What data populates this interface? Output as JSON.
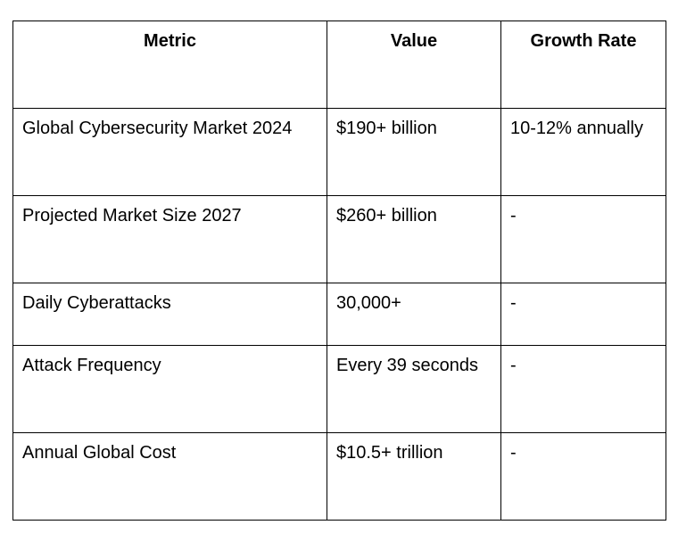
{
  "table": {
    "headers": [
      "Metric",
      "Value",
      "Growth Rate"
    ],
    "rows": [
      [
        "Global Cybersecurity Market 2024",
        "$190+ billion",
        "10-12% annually"
      ],
      [
        "Projected Market Size 2027",
        "$260+ billion",
        "-"
      ],
      [
        "Daily Cyberattacks",
        "30,000+",
        "-"
      ],
      [
        "Attack Frequency",
        "Every 39 seconds",
        "-"
      ],
      [
        "Annual Global Cost",
        "$10.5+ trillion",
        "-"
      ]
    ]
  }
}
